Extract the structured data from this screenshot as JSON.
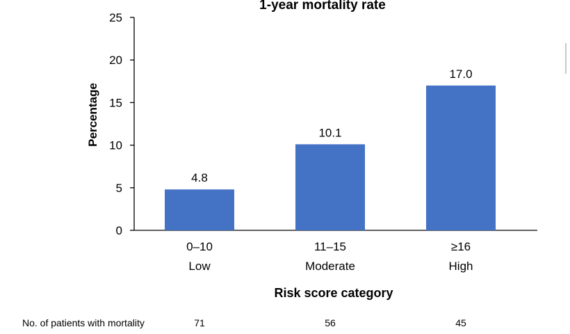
{
  "chart_data": {
    "type": "bar",
    "title": "1-year mortality rate",
    "ylabel": "Percentage",
    "xlabel": "Risk score category",
    "ylim": [
      0,
      25
    ],
    "yticks": [
      0,
      5,
      10,
      15,
      20,
      25
    ],
    "categories": [
      {
        "range": "0–10",
        "level": "Low"
      },
      {
        "range": "11–15",
        "level": "Moderate"
      },
      {
        "range": "≥16",
        "level": "High"
      }
    ],
    "values": [
      4.8,
      10.1,
      17.0
    ],
    "value_labels": [
      "4.8",
      "10.1",
      "17.0"
    ],
    "bar_color": "#4472C4",
    "grid": false,
    "legend": "none"
  },
  "table": {
    "rows": [
      {
        "label": "No. of patients with mortality",
        "values": [
          "71",
          "56",
          "45"
        ]
      }
    ]
  }
}
